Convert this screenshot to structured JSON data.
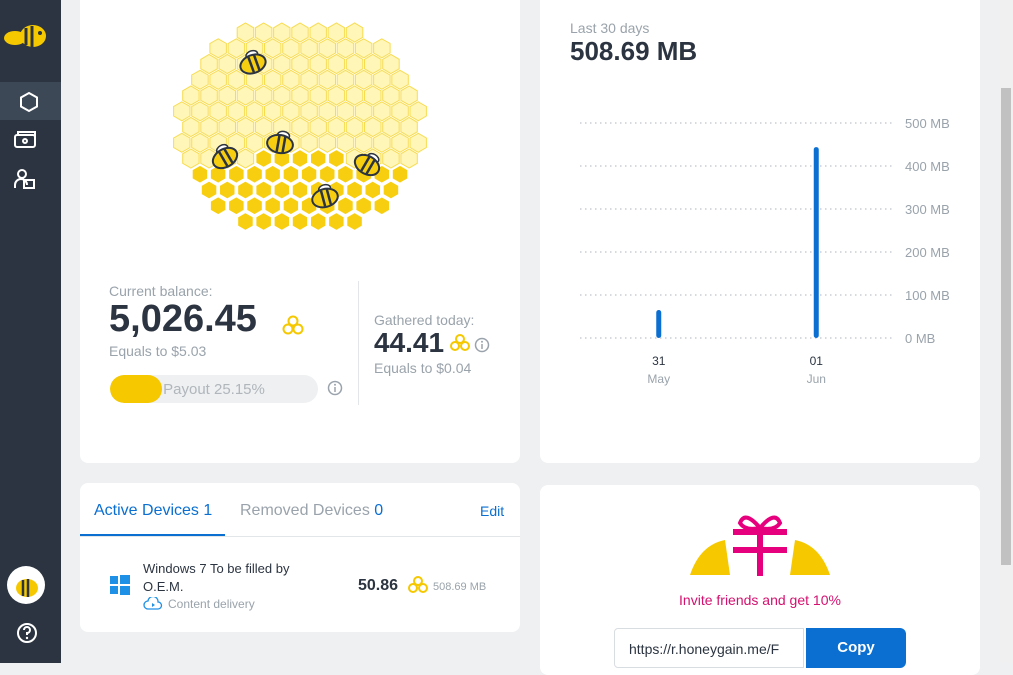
{
  "balance": {
    "label": "Current balance:",
    "amount": "5,026.45",
    "equals": "Equals to $5.03",
    "payout": {
      "value": 25.15,
      "label": "Payout 25.15%"
    }
  },
  "today": {
    "label": "Gathered today:",
    "amount": "44.41",
    "equals": "Equals to $0.04"
  },
  "usage": {
    "period": "Last 30 days",
    "total": "508.69 MB"
  },
  "chart_data": {
    "type": "bar",
    "categories": [
      "31",
      "01"
    ],
    "months": [
      "May",
      "Jun"
    ],
    "values": [
      65,
      444
    ],
    "color": "#0a6fd1",
    "ylim": [
      0,
      500
    ],
    "yticks": [
      {
        "value": 0,
        "label": "0 MB"
      },
      {
        "value": 100,
        "label": "100 MB"
      },
      {
        "value": 200,
        "label": "200 MB"
      },
      {
        "value": 300,
        "label": "300 MB"
      },
      {
        "value": 400,
        "label": "400 MB"
      },
      {
        "value": 500,
        "label": "500 MB"
      }
    ],
    "grid": true
  },
  "devices": {
    "tabs": [
      {
        "label": "Active Devices",
        "count": "1"
      },
      {
        "label": "Removed Devices",
        "count": "0"
      }
    ],
    "edit": "Edit",
    "rows": [
      {
        "name": "Windows 7 To be filled by O.E.M.",
        "service": "Content delivery",
        "earned": "50.86",
        "traffic": "508.69 MB"
      }
    ]
  },
  "referral": {
    "text": "Invite friends and get 10%",
    "link": "https://r.honeygain.me/F",
    "button": "Copy"
  }
}
